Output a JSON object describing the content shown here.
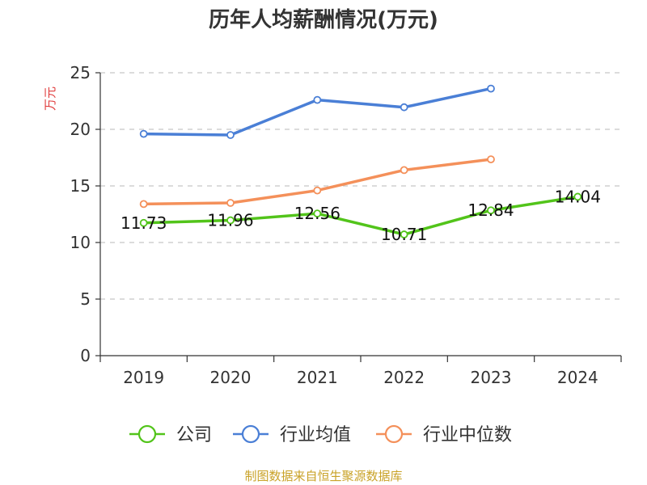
{
  "chart_data": {
    "type": "line",
    "title": "历年人均薪酬情况(万元)",
    "ylabel": "万元",
    "xlabel": "",
    "categories": [
      "2019",
      "2020",
      "2021",
      "2022",
      "2023",
      "2024"
    ],
    "ylim": [
      0,
      25
    ],
    "yticks": [
      0,
      5,
      10,
      15,
      20,
      25
    ],
    "grid": true,
    "legend_position": "bottom",
    "series": [
      {
        "name": "公司",
        "color": "#52c41a",
        "values": [
          11.73,
          11.96,
          12.56,
          10.71,
          12.84,
          14.04
        ],
        "labels": [
          "11.73",
          "11.96",
          "12.56",
          "10.71",
          "12.84",
          "14.04"
        ]
      },
      {
        "name": "行业均值",
        "color": "#4a7fd6",
        "values": [
          19.6,
          19.5,
          22.6,
          21.95,
          23.6,
          null
        ]
      },
      {
        "name": "行业中位数",
        "color": "#f4905a",
        "values": [
          13.4,
          13.5,
          14.6,
          16.4,
          17.35,
          null
        ]
      }
    ]
  },
  "footer": "制图数据来自恒生聚源数据库"
}
